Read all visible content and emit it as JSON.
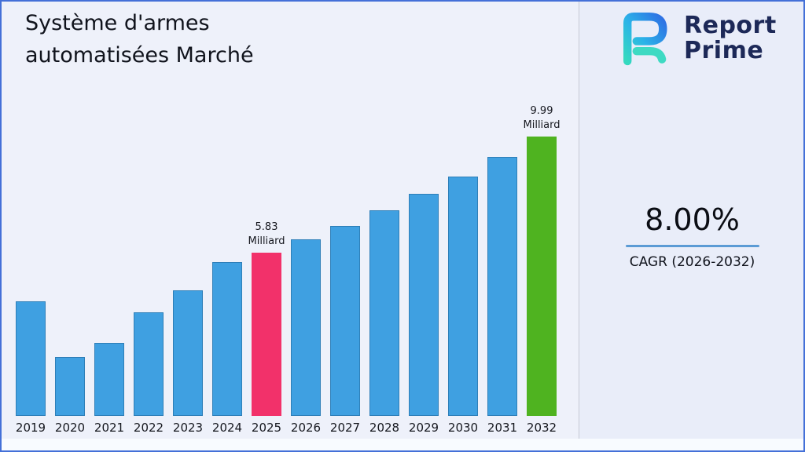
{
  "header": {
    "title": "Système d'armes\nautomatisées Marché"
  },
  "logo": {
    "name1": "Report",
    "name2": "Prime"
  },
  "stats": {
    "cagr_value": "8.00%",
    "cagr_label": "CAGR (2026-2032)",
    "underline_color": "#5b9bd5"
  },
  "chart_data": {
    "type": "bar",
    "title": "Système d'armes automatisées Marché",
    "unit": "Milliard",
    "categories": [
      "2019",
      "2020",
      "2021",
      "2022",
      "2023",
      "2024",
      "2025",
      "2026",
      "2027",
      "2028",
      "2029",
      "2030",
      "2031",
      "2032"
    ],
    "values": [
      4.1,
      2.1,
      2.6,
      3.7,
      4.5,
      5.5,
      5.83,
      6.3,
      6.8,
      7.34,
      7.93,
      8.57,
      9.25,
      9.99
    ],
    "ylim": [
      0,
      10.5
    ],
    "grid": false,
    "legend": "none",
    "bar_default_color": "#3fa0e1",
    "bar_border_color": "#2e7fb8",
    "highlights": [
      {
        "index": 6,
        "color": "#f2316a",
        "label": "5.83\nMilliard"
      },
      {
        "index": 13,
        "color": "#4fb320",
        "label": "9.99\nMilliard"
      }
    ]
  }
}
